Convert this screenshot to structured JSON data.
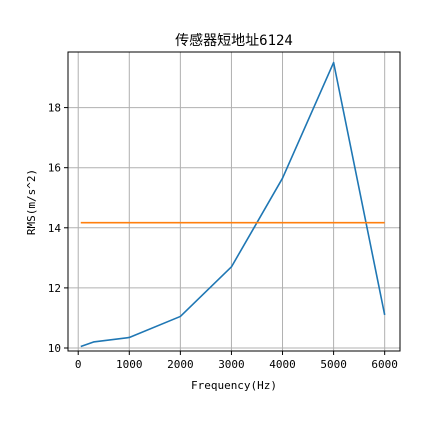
{
  "chart_data": {
    "type": "line",
    "title": "传感器短地址6124",
    "xlabel": "Frequency(Hz)",
    "ylabel": "RMS(m/s^2)",
    "xlim": [
      -200,
      6300
    ],
    "ylim": [
      9.9,
      19.85
    ],
    "xticks": [
      0,
      1000,
      2000,
      3000,
      4000,
      5000,
      6000
    ],
    "yticks": [
      10,
      12,
      14,
      16,
      18
    ],
    "grid": true,
    "series": [
      {
        "color": "#1f77b4",
        "x": [
          50,
          300,
          1000,
          2000,
          3000,
          4000,
          5000,
          6000
        ],
        "y": [
          10.05,
          10.2,
          10.35,
          11.05,
          12.7,
          15.65,
          19.5,
          11.1
        ]
      },
      {
        "color": "#ff7f0e",
        "x": [
          50,
          6000
        ],
        "y": [
          14.17,
          14.17
        ]
      }
    ]
  }
}
